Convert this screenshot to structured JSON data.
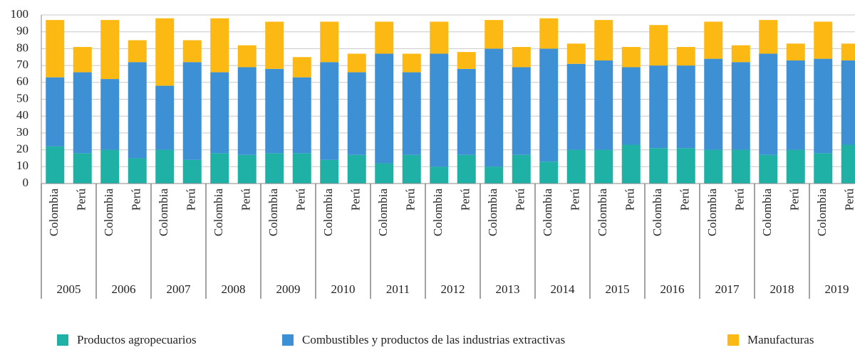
{
  "chart_data": {
    "type": "stacked_bar",
    "groups": [
      "2005",
      "2006",
      "2007",
      "2008",
      "2009",
      "2010",
      "2011",
      "2012",
      "2013",
      "2014",
      "2015",
      "2016",
      "2017",
      "2018",
      "2019"
    ],
    "categories": [
      "Colombia",
      "Perú",
      "Colombia",
      "Perú",
      "Colombia",
      "Perú",
      "Colombia",
      "Perú",
      "Colombia",
      "Perú",
      "Colombia",
      "Perú",
      "Colombia",
      "Perú",
      "Colombia",
      "Perú",
      "Colombia",
      "Perú",
      "Colombia",
      "Perú",
      "Colombia",
      "Perú",
      "Colombia",
      "Perú",
      "Colombia",
      "Perú",
      "Colombia",
      "Perú",
      "Colombia",
      "Perú"
    ],
    "series": [
      {
        "name": "Productos agropecuarios",
        "color": "#1fb1a6",
        "values": [
          22,
          18,
          20,
          15,
          20,
          14,
          18,
          17,
          18,
          18,
          14,
          17,
          12,
          17,
          10,
          17,
          10,
          17,
          13,
          20,
          20,
          23,
          21,
          21,
          20,
          20,
          17,
          20,
          18,
          23
        ]
      },
      {
        "name": "Combustibles y productos de las industrias extractivas",
        "color": "#3e90d5",
        "values": [
          41,
          48,
          42,
          57,
          38,
          58,
          48,
          52,
          50,
          45,
          58,
          49,
          65,
          49,
          67,
          51,
          70,
          52,
          67,
          51,
          53,
          46,
          49,
          49,
          54,
          52,
          60,
          53,
          56,
          50
        ]
      },
      {
        "name": "Manufacturas",
        "color": "#fdb913",
        "values": [
          34,
          15,
          35,
          13,
          40,
          13,
          32,
          13,
          28,
          12,
          24,
          11,
          19,
          11,
          19,
          10,
          17,
          12,
          18,
          12,
          24,
          12,
          24,
          11,
          22,
          10,
          20,
          10,
          22,
          10
        ]
      }
    ],
    "ylim": [
      0,
      100
    ],
    "yticks": [
      0,
      10,
      20,
      30,
      40,
      50,
      60,
      70,
      80,
      90,
      100
    ],
    "grid": true
  }
}
